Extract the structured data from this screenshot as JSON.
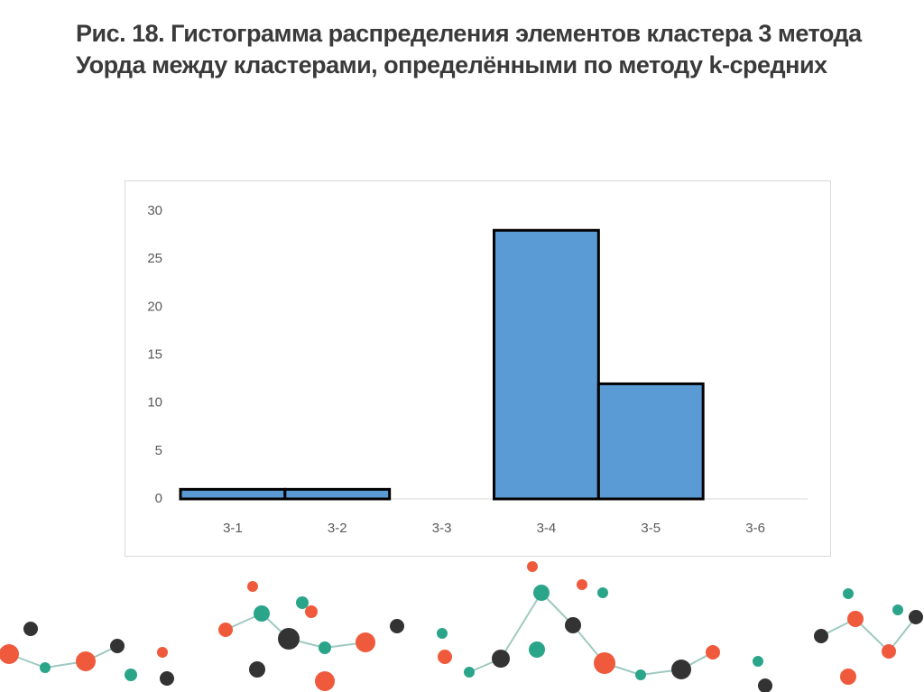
{
  "chart_data": {
    "type": "bar",
    "title": "Рис. 18. Гистограмма распределения элементов кластера 3 метода Уорда между кластерами, определёнными по методу k-средних",
    "categories": [
      "3-1",
      "3-2",
      "3-3",
      "3-4",
      "3-5",
      "3-6"
    ],
    "values": [
      1,
      1,
      0,
      28,
      12,
      0
    ],
    "color": "#5b9bd5",
    "ylim": [
      0,
      30
    ],
    "yticks": [
      0,
      5,
      10,
      15,
      20,
      25,
      30
    ],
    "grid": false
  }
}
